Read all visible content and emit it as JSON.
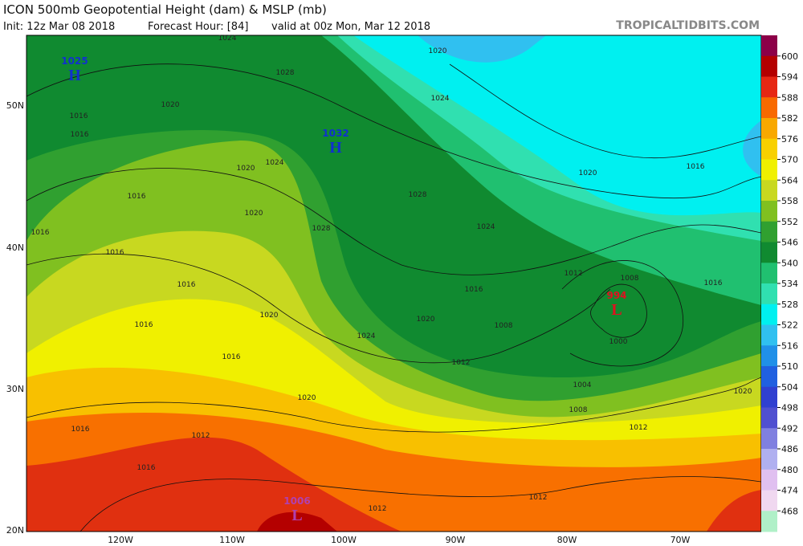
{
  "header": {
    "title": "ICON 500mb Geopotential Height (dam) & MSLP (mb)",
    "init": "Init: 12z Mar 08 2018",
    "forecast": "Forecast Hour: [84]",
    "valid": "valid at 00z Mon, Mar 12 2018",
    "source": "TROPICALTIDBITS.COM"
  },
  "colorbar": {
    "labels": [
      600,
      594,
      588,
      582,
      576,
      570,
      564,
      558,
      552,
      546,
      540,
      534,
      528,
      522,
      516,
      510,
      504,
      498,
      492,
      486,
      480,
      474,
      468
    ],
    "colors": [
      "#8c0048",
      "#b40000",
      "#e62814",
      "#f86a00",
      "#f8a800",
      "#f8d000",
      "#f0f000",
      "#c8d820",
      "#80c020",
      "#30a030",
      "#108a30",
      "#20c070",
      "#30e0b0",
      "#00f0f0",
      "#30c0f0",
      "#2090e8",
      "#2060e0",
      "#3040d0",
      "#5050d0",
      "#8080e0",
      "#b0b0f0",
      "#e0c0f0",
      "#f0d8f0",
      "#b0f0c8"
    ]
  },
  "axes": {
    "lat": [
      "50N",
      "40N",
      "30N",
      "20N"
    ],
    "lon": [
      "120W",
      "110W",
      "100W",
      "90W",
      "80W",
      "70W"
    ]
  },
  "centers": [
    {
      "type": "H",
      "pressure": "1025"
    },
    {
      "type": "H",
      "pressure": "1032"
    },
    {
      "type": "L",
      "pressure": "994"
    },
    {
      "type": "L",
      "pressure": "1006"
    }
  ],
  "isobar_labels": [
    "1024",
    "1020",
    "1028",
    "1024",
    "1020",
    "1016",
    "1016",
    "1024",
    "1020",
    "1016",
    "1020",
    "1028",
    "1028",
    "1024",
    "1016",
    "1016",
    "1016",
    "1020",
    "1024",
    "1020",
    "1016",
    "1012",
    "1008",
    "1008",
    "1000",
    "1012",
    "1004",
    "1008",
    "1012",
    "1016",
    "1016",
    "1020",
    "1016",
    "1012",
    "1016",
    "1012",
    "1012",
    "1016",
    "1016",
    "1020",
    "1020"
  ]
}
